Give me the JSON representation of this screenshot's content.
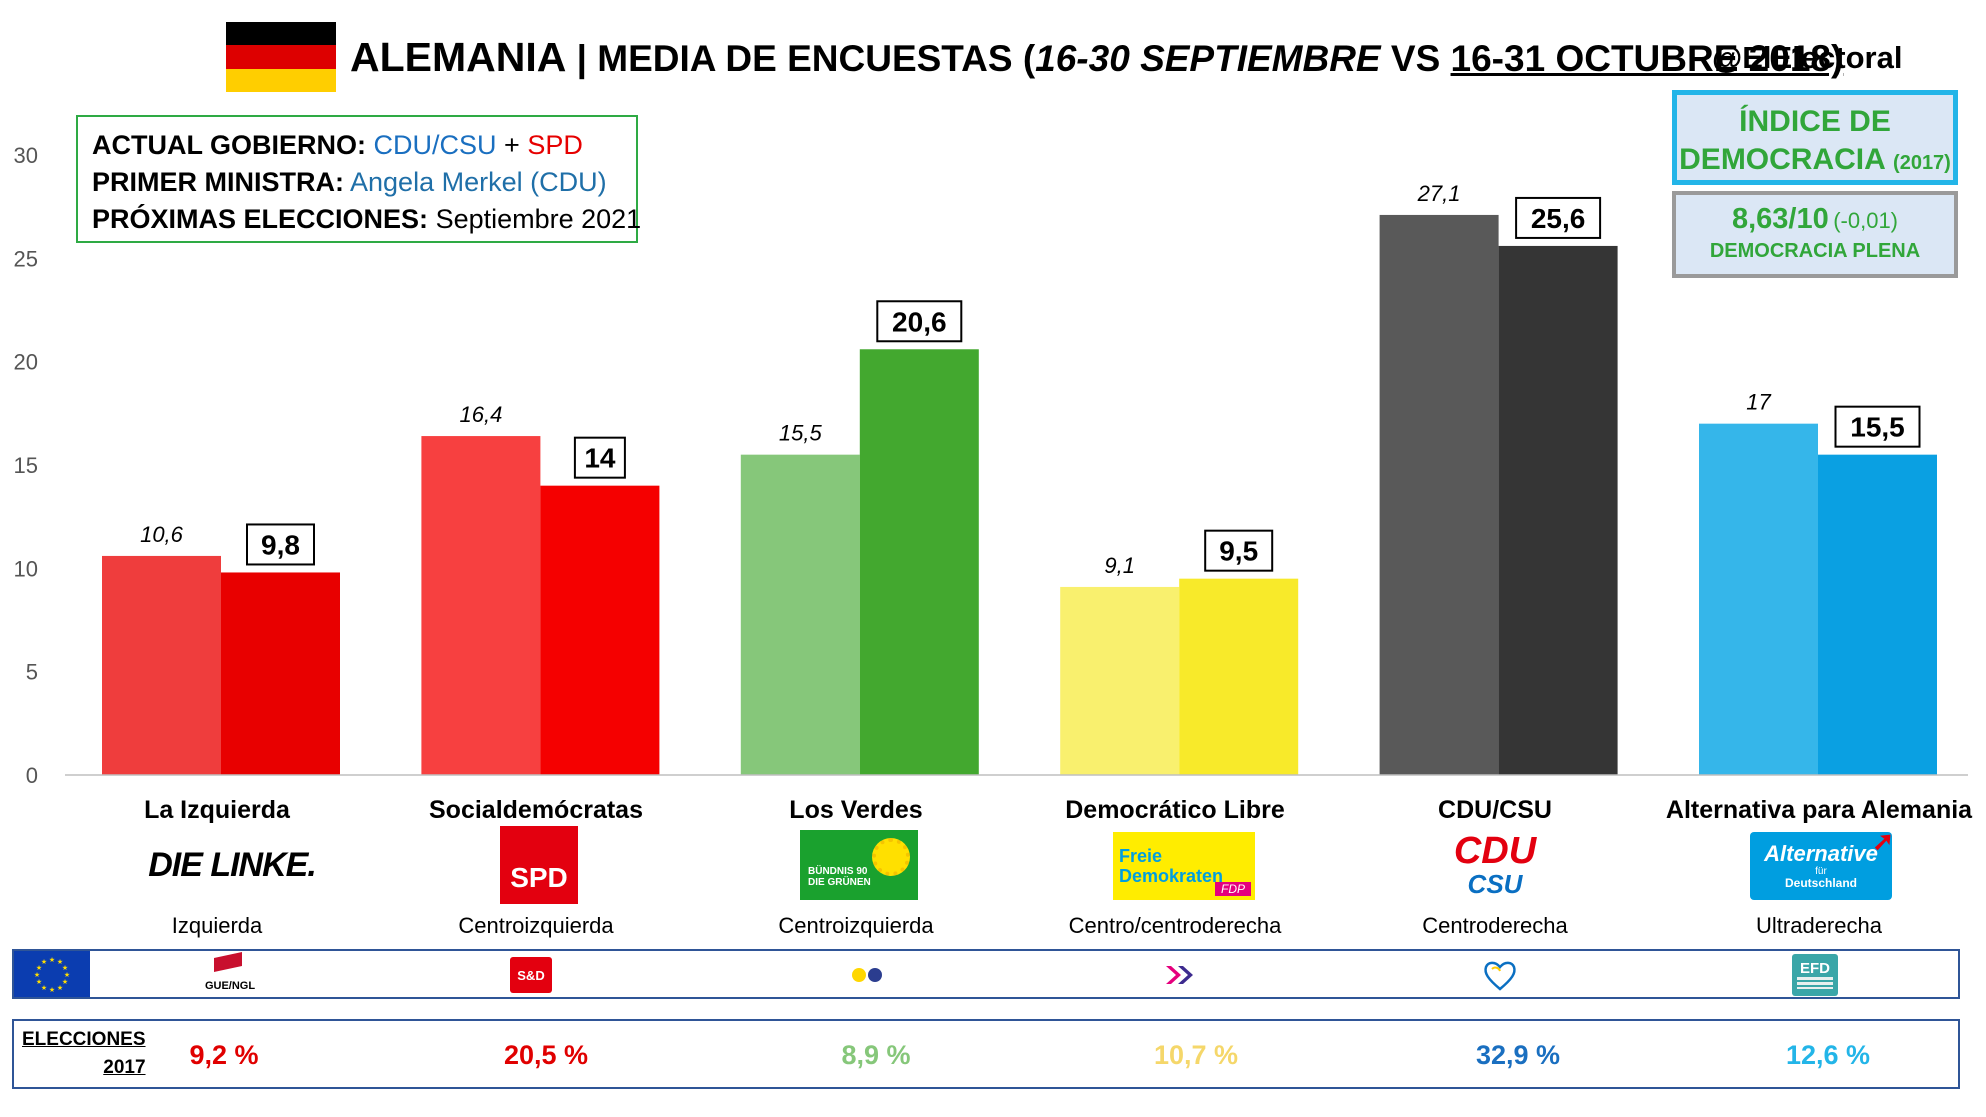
{
  "header": {
    "country": "ALEMANIA",
    "separator": " | ",
    "prefix": "MEDIA DE ENCUESTAS (",
    "period_prev": "16-30 SEPTIEMBRE",
    "vs": " VS ",
    "period_cur": "16-31 OCTUBRE 2018)",
    "handle": "@ElElectoral",
    "flag_colors": [
      "#000000",
      "#dd0000",
      "#ffce00"
    ]
  },
  "info": {
    "gov_label": "ACTUAL GOBIERNO:",
    "gov_party1": "CDU/CSU",
    "gov_plus": " + ",
    "gov_party2": "SPD",
    "pm_label": "PRIMER MINISTRA:",
    "pm_value": "Angela Merkel (CDU)",
    "next_label": "PRÓXIMAS ELECCIONES:",
    "next_value": "Septiembre 2021"
  },
  "democracy": {
    "title_line1": "ÍNDICE DE",
    "title_line2": "DEMOCRACIA",
    "year": "(2017)",
    "score": "8,63/10",
    "change": "(-0,01)",
    "classification": "DEMOCRACIA PLENA"
  },
  "chart_data": {
    "type": "bar",
    "categories": [
      "La Izquierda",
      "Socialdemócratas",
      "Los Verdes",
      "Democrático Libre",
      "CDU/CSU",
      "Alternativa para Alemania"
    ],
    "series": [
      {
        "name": "16-30 SEPTIEMBRE",
        "values": [
          10.6,
          16.4,
          15.5,
          9.1,
          27.1,
          17
        ]
      },
      {
        "name": "16-31 OCTUBRE 2018",
        "values": [
          9.8,
          14,
          20.6,
          9.5,
          25.6,
          15.5
        ]
      }
    ],
    "value_labels_prev": [
      "10,6",
      "16,4",
      "15,5",
      "9,1",
      "27,1",
      "17"
    ],
    "value_labels_cur": [
      "9,8",
      "14",
      "20,6",
      "9,5",
      "25,6",
      "15,5"
    ],
    "colors_prev": [
      "#ef3d3d",
      "#f74040",
      "#86c77a",
      "#f9f06e",
      "#595959",
      "#35b6ea"
    ],
    "colors_cur": [
      "#e80000",
      "#f50000",
      "#43a82f",
      "#f8ea2a",
      "#353535",
      "#0aa0e2"
    ],
    "yticks": [
      "0",
      "5",
      "10",
      "15",
      "20",
      "25",
      "30"
    ],
    "ylim": [
      0,
      30
    ],
    "grid": false
  },
  "parties": [
    {
      "name": "La Izquierda",
      "ideology": "Izquierda",
      "logo_text": "DIE LINKE.",
      "eu_group": "GUE/NGL",
      "result_2017": "9,2 %",
      "result_color": "#e00000"
    },
    {
      "name": "Socialdemócratas",
      "ideology": "Centroizquierda",
      "logo_text": "SPD",
      "eu_group": "S&D",
      "result_2017": "20,5 %",
      "result_color": "#e00000"
    },
    {
      "name": "Los Verdes",
      "ideology": "Centroizquierda",
      "logo_text_1": "BÜNDNIS 90",
      "logo_text_2": "DIE GRÜNEN",
      "eu_group": "",
      "result_2017": "8,9 %",
      "result_color": "#86c77a"
    },
    {
      "name": "Democrático Libre",
      "ideology": "Centro/centroderecha",
      "logo_text_1": "Freie",
      "logo_text_2": "Demokraten",
      "logo_text_3": "FDP",
      "eu_group": "",
      "result_2017": "10,7 %",
      "result_color": "#f5d76a"
    },
    {
      "name": "CDU/CSU",
      "ideology": "Centroderecha",
      "logo_text_1": "CDU",
      "logo_text_2": "CSU",
      "eu_group": "",
      "result_2017": "32,9 %",
      "result_color": "#1a6fc0"
    },
    {
      "name": "Alternativa para Alemania",
      "ideology": "Ultraderecha",
      "logo_text_1": "Alternative",
      "logo_text_2": "für",
      "logo_text_3": "Deutschland",
      "eu_group": "EFD",
      "result_2017": "12,6 %",
      "result_color": "#23b5e8"
    }
  ],
  "elections": {
    "label_line1": "ELECCIONES",
    "label_line2": "2017"
  }
}
